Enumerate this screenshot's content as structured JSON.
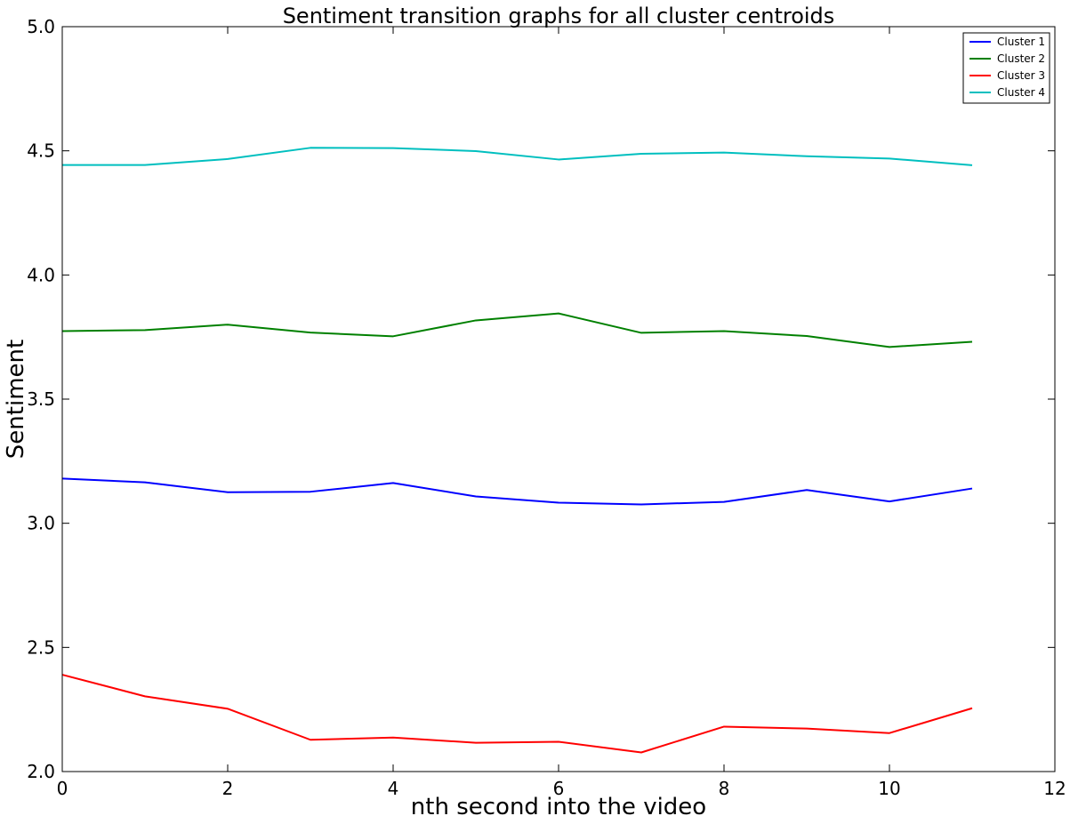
{
  "chart_data": {
    "type": "line",
    "title": "Sentiment transition graphs for all cluster centroids",
    "xlabel": "nth second into the video",
    "ylabel": "Sentiment",
    "xlim": [
      0,
      12
    ],
    "ylim": [
      2.0,
      5.0
    ],
    "xticks": [
      0,
      2,
      4,
      6,
      8,
      10,
      12
    ],
    "xtick_labels": [
      "0",
      "2",
      "4",
      "6",
      "8",
      "10",
      "12"
    ],
    "yticks": [
      2.0,
      2.5,
      3.0,
      3.5,
      4.0,
      4.5,
      5.0
    ],
    "ytick_labels": [
      "2.0",
      "2.5",
      "3.0",
      "3.5",
      "4.0",
      "4.5",
      "5.0"
    ],
    "grid": false,
    "legend_position": "top-right",
    "x": [
      0,
      1,
      2,
      3,
      4,
      5,
      6,
      7,
      8,
      9,
      10,
      11
    ],
    "series": [
      {
        "name": "Cluster 1",
        "color": "#0000ff",
        "values": [
          3.18,
          3.165,
          3.125,
          3.127,
          3.162,
          3.108,
          3.083,
          3.076,
          3.086,
          3.134,
          3.088,
          3.14
        ]
      },
      {
        "name": "Cluster 2",
        "color": "#008000",
        "values": [
          3.774,
          3.778,
          3.8,
          3.768,
          3.753,
          3.817,
          3.845,
          3.767,
          3.774,
          3.754,
          3.71,
          3.731
        ]
      },
      {
        "name": "Cluster 3",
        "color": "#ff0000",
        "values": [
          2.39,
          2.303,
          2.253,
          2.128,
          2.137,
          2.116,
          2.12,
          2.077,
          2.181,
          2.173,
          2.155,
          2.255
        ]
      },
      {
        "name": "Cluster 4",
        "color": "#00bfbf",
        "values": [
          4.443,
          4.443,
          4.467,
          4.512,
          4.511,
          4.499,
          4.465,
          4.488,
          4.493,
          4.478,
          4.469,
          4.442
        ]
      }
    ]
  }
}
